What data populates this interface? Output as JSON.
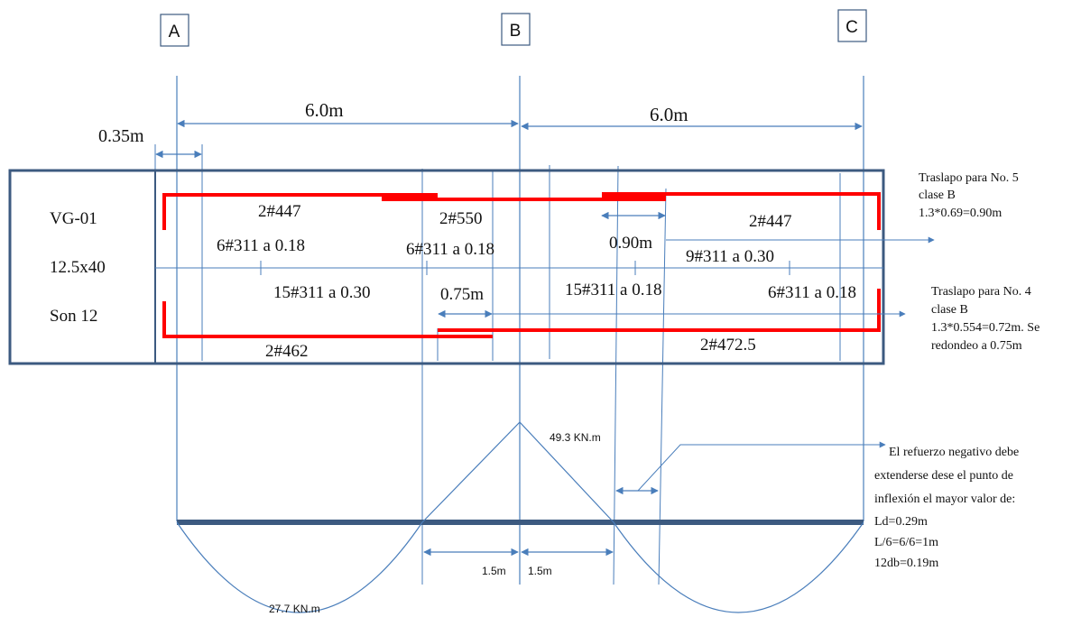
{
  "axes": {
    "a": "A",
    "b": "B",
    "c": "C"
  },
  "dims": {
    "span_ab": "6.0m",
    "span_bc": "6.0m",
    "support_width": "0.35m",
    "lap_top": "0.90m",
    "lap_bottom": "0.75m",
    "inflection_left": "1.5m",
    "inflection_right": "1.5m"
  },
  "beam": {
    "id": "VG-01",
    "section": "12.5x40",
    "count": "Son 12"
  },
  "bars": {
    "top_left": "2#447",
    "top_mid": "2#550",
    "top_right": "2#447",
    "bottom_left": "2#462",
    "bottom_right": "2#472.5"
  },
  "stirrups": {
    "s1": "6#311 a 0.18",
    "s2": "6#311 a 0.18",
    "s3": "15#311 a 0.30",
    "s4": "15#311 a 0.18",
    "s5": "9#311 a 0.30",
    "s6": "6#311 a 0.18"
  },
  "moments": {
    "negative": "49.3   KN.m",
    "positive": "27.7 KN.m"
  },
  "notes": {
    "lap5": [
      "Traslapo para No. 5",
      "clase B",
      "1.3*0.69=0.90m"
    ],
    "lap4": [
      "Traslapo para No. 4",
      "clase B",
      "1.3*0.554=0.72m. Se",
      "redondeo a 0.75m"
    ],
    "negative_rebar": [
      "El refuerzo negativo debe",
      "extenderse dese el punto de",
      "inflexión el mayor valor de:",
      "Ld=0.29m",
      "L/6=6/6=1m",
      "12db=0.19m"
    ]
  },
  "colors": {
    "dimension": "#4a7ebb",
    "rebar": "#ff0000",
    "outline": "#3c5a80"
  }
}
